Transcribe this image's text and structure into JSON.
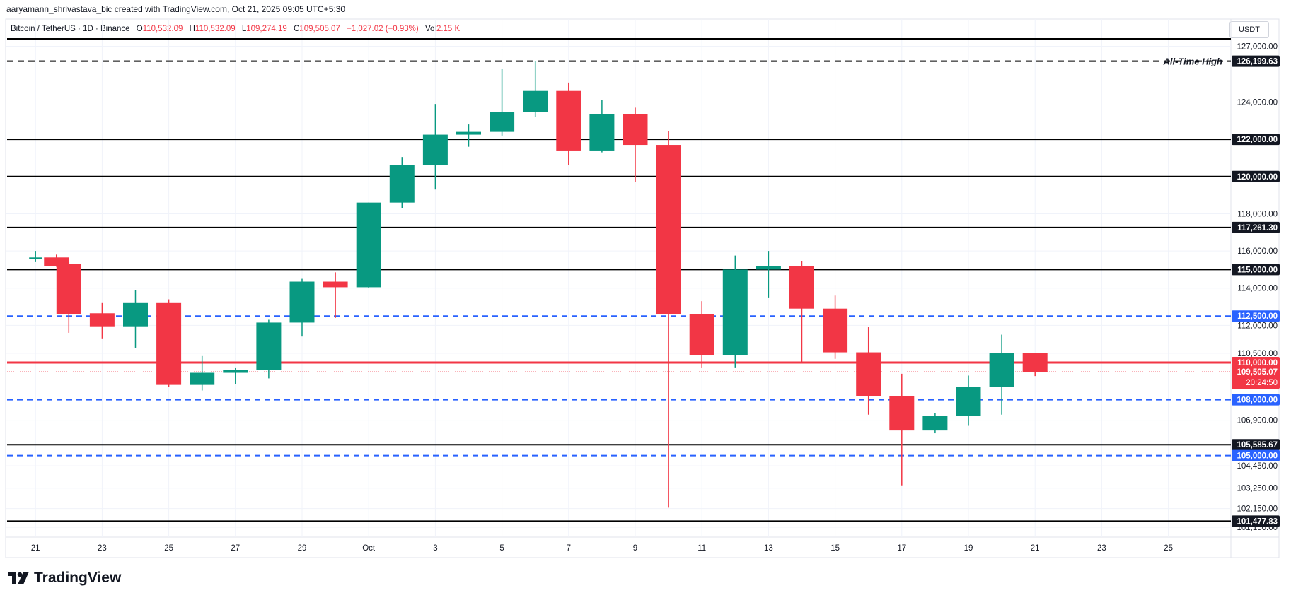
{
  "header": {
    "attribution": "aaryamann_shrivastava_bic created with TradingView.com, Oct 21, 2025 09:05 UTC+5:30",
    "symbol": "Bitcoin / TetherUS · 1D · Binance",
    "o_label": "O",
    "o": "110,532.09",
    "h_label": "H",
    "h": "110,532.09",
    "l_label": "L",
    "l": "109,274.19",
    "c_label": "C",
    "c": "109,505.07",
    "change": "−1,027.02 (−0.93%)",
    "vol_label": "Vol",
    "vol": "2.15 K",
    "currency": "USDT"
  },
  "logo": {
    "text": "TradingView"
  },
  "colors": {
    "up": "#089981",
    "down": "#f23645",
    "blue": "#2962ff",
    "black": "#000000"
  },
  "chart_data": {
    "type": "candlestick",
    "ylim": [
      100500,
      127650
    ],
    "x_tick_labels": [
      {
        "day": 1,
        "label": "21"
      },
      {
        "day": 3,
        "label": "23"
      },
      {
        "day": 5,
        "label": "25"
      },
      {
        "day": 7,
        "label": "27"
      },
      {
        "day": 9,
        "label": "29"
      },
      {
        "day": 11,
        "label": "Oct"
      },
      {
        "day": 13,
        "label": "3"
      },
      {
        "day": 15,
        "label": "5"
      },
      {
        "day": 17,
        "label": "7"
      },
      {
        "day": 19,
        "label": "9"
      },
      {
        "day": 21,
        "label": "11"
      },
      {
        "day": 23,
        "label": "13"
      },
      {
        "day": 25,
        "label": "15"
      },
      {
        "day": 27,
        "label": "17"
      },
      {
        "day": 29,
        "label": "19"
      },
      {
        "day": 31,
        "label": "21"
      },
      {
        "day": 33,
        "label": "23"
      },
      {
        "day": 35,
        "label": "25"
      }
    ],
    "y_tick_labels": [
      {
        "value": 124000,
        "label": "124,000.00"
      },
      {
        "value": 118000,
        "label": "118,000.00"
      },
      {
        "value": 116000,
        "label": "116,000.00"
      },
      {
        "value": 114000,
        "label": "114,000.00"
      },
      {
        "value": 112000,
        "label": "112,000.00"
      },
      {
        "value": 110500,
        "label": "110,500.00"
      },
      {
        "value": 106900,
        "label": "106,900.00"
      },
      {
        "value": 104450,
        "label": "104,450.00"
      },
      {
        "value": 103250,
        "label": "103,250.00"
      },
      {
        "value": 102150,
        "label": "102,150.00"
      },
      {
        "value": 101150,
        "label": "101,150.00"
      },
      {
        "value": 127000,
        "label": "127,000.00"
      }
    ],
    "levels": [
      {
        "value": 126199.63,
        "label": "126,199.63",
        "style": "dashed",
        "color": "#000000",
        "annotation": "All-Time High"
      },
      {
        "value": 127400,
        "label": "",
        "style": "solid",
        "color": "#000000",
        "annotation": ""
      },
      {
        "value": 122000,
        "label": "122,000.00",
        "style": "solid",
        "color": "#000000",
        "annotation": ""
      },
      {
        "value": 120000,
        "label": "120,000.00",
        "style": "solid",
        "color": "#000000",
        "annotation": ""
      },
      {
        "value": 117261.3,
        "label": "117,261.30",
        "style": "solid",
        "color": "#000000",
        "annotation": ""
      },
      {
        "value": 115000,
        "label": "115,000.00",
        "style": "solid",
        "color": "#000000",
        "annotation": ""
      },
      {
        "value": 112500,
        "label": "112,500.00",
        "style": "dashed",
        "color": "#2962ff",
        "annotation": ""
      },
      {
        "value": 110000,
        "label": "110,000.00",
        "style": "solid",
        "color": "#f23645",
        "annotation": ""
      },
      {
        "value": 108000,
        "label": "108,000.00",
        "style": "dashed",
        "color": "#2962ff",
        "annotation": ""
      },
      {
        "value": 105585.67,
        "label": "105,585.67",
        "style": "solid",
        "color": "#000000",
        "annotation": ""
      },
      {
        "value": 105000,
        "label": "105,000.00",
        "style": "dashed",
        "color": "#2962ff",
        "annotation": ""
      },
      {
        "value": 101477.83,
        "label": "101,477.83",
        "style": "solid",
        "color": "#000000",
        "annotation": ""
      }
    ],
    "last_price": {
      "value": 109505.07,
      "label": "109,505.07",
      "countdown": "20:24:50"
    },
    "candles": [
      {
        "day": 1,
        "o": 115600,
        "h": 116000,
        "l": 115400,
        "c": 115650
      },
      {
        "day": 1.5,
        "o": 115650,
        "h": 115800,
        "l": 115150,
        "c": 115200
      },
      {
        "day": 2,
        "o": 115300,
        "h": 115400,
        "l": 111600,
        "c": 112600
      },
      {
        "day": 3,
        "o": 112650,
        "h": 113200,
        "l": 111300,
        "c": 111950
      },
      {
        "day": 4,
        "o": 111950,
        "h": 113900,
        "l": 110800,
        "c": 113200
      },
      {
        "day": 5,
        "o": 113200,
        "h": 113400,
        "l": 108700,
        "c": 108800
      },
      {
        "day": 6,
        "o": 108800,
        "h": 110350,
        "l": 108500,
        "c": 109450
      },
      {
        "day": 7,
        "o": 109450,
        "h": 109700,
        "l": 108850,
        "c": 109600
      },
      {
        "day": 8,
        "o": 109600,
        "h": 112300,
        "l": 109150,
        "c": 112150
      },
      {
        "day": 9,
        "o": 112150,
        "h": 114500,
        "l": 111400,
        "c": 114350
      },
      {
        "day": 10,
        "o": 114350,
        "h": 114850,
        "l": 112400,
        "c": 114050
      },
      {
        "day": 11,
        "o": 114050,
        "h": 118600,
        "l": 114000,
        "c": 118600
      },
      {
        "day": 12,
        "o": 118600,
        "h": 121050,
        "l": 118300,
        "c": 120600
      },
      {
        "day": 13,
        "o": 120600,
        "h": 123900,
        "l": 119300,
        "c": 122250
      },
      {
        "day": 14,
        "o": 122250,
        "h": 122800,
        "l": 121600,
        "c": 122400
      },
      {
        "day": 15,
        "o": 122400,
        "h": 125800,
        "l": 122200,
        "c": 123450
      },
      {
        "day": 16,
        "o": 123450,
        "h": 126199,
        "l": 123200,
        "c": 124600
      },
      {
        "day": 17,
        "o": 124600,
        "h": 125050,
        "l": 120600,
        "c": 121400
      },
      {
        "day": 18,
        "o": 121400,
        "h": 124100,
        "l": 121300,
        "c": 123350
      },
      {
        "day": 19,
        "o": 123350,
        "h": 123700,
        "l": 119700,
        "c": 121700
      },
      {
        "day": 20,
        "o": 121700,
        "h": 122450,
        "l": 102200,
        "c": 112600
      },
      {
        "day": 21,
        "o": 112600,
        "h": 113300,
        "l": 109700,
        "c": 110400
      },
      {
        "day": 22,
        "o": 110400,
        "h": 115750,
        "l": 109700,
        "c": 115000
      },
      {
        "day": 23,
        "o": 115000,
        "h": 116000,
        "l": 113500,
        "c": 115200
      },
      {
        "day": 24,
        "o": 115200,
        "h": 115450,
        "l": 110000,
        "c": 112900
      },
      {
        "day": 25,
        "o": 112900,
        "h": 113600,
        "l": 110200,
        "c": 110550
      },
      {
        "day": 26,
        "o": 110550,
        "h": 111900,
        "l": 107200,
        "c": 108200
      },
      {
        "day": 27,
        "o": 108200,
        "h": 109400,
        "l": 103400,
        "c": 106350
      },
      {
        "day": 28,
        "o": 106350,
        "h": 107300,
        "l": 106200,
        "c": 107150
      },
      {
        "day": 29,
        "o": 107150,
        "h": 109300,
        "l": 106600,
        "c": 108700
      },
      {
        "day": 30,
        "o": 108700,
        "h": 111500,
        "l": 107200,
        "c": 110500
      },
      {
        "day": 31,
        "o": 110532.09,
        "h": 110532.09,
        "l": 109274.19,
        "c": 109505.07
      }
    ]
  }
}
